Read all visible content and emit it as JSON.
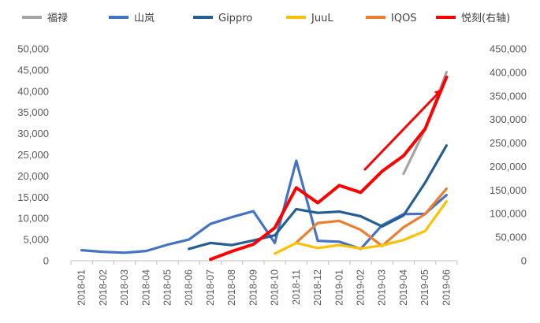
{
  "chart_data": {
    "type": "line",
    "title": "",
    "xlabel": "",
    "ylabel": "",
    "y2label": "",
    "ylim": [
      0,
      50000
    ],
    "y2lim": [
      0,
      450000
    ],
    "yticks": [
      "0",
      "5,000",
      "10,000",
      "15,000",
      "20,000",
      "25,000",
      "30,000",
      "35,000",
      "40,000",
      "45,000",
      "50,000"
    ],
    "y2ticks": [
      "0",
      "50,000",
      "100,000",
      "150,000",
      "200,000",
      "250,000",
      "300,000",
      "350,000",
      "400,000",
      "450,000"
    ],
    "categories": [
      "2018-01",
      "2018-02",
      "2018-03",
      "2018-04",
      "2018-05",
      "2018-06",
      "2018-07",
      "2018-08",
      "2018-09",
      "2018-10",
      "2018-11",
      "2018-12",
      "2019-01",
      "2019-02",
      "2019-03",
      "2019-04",
      "2019-05",
      "2019-06"
    ],
    "grid": false,
    "legend_position": "top",
    "series": [
      {
        "name": "福禄",
        "axis": "left",
        "color": "#a5a5a5",
        "values": [
          null,
          null,
          null,
          null,
          null,
          null,
          null,
          null,
          null,
          null,
          null,
          null,
          null,
          null,
          null,
          20500,
          31000,
          44500
        ]
      },
      {
        "name": "山岚",
        "axis": "left",
        "color": "#4472c4",
        "values": [
          2500,
          2100,
          1900,
          2300,
          3800,
          5000,
          8700,
          10300,
          11700,
          4200,
          23600,
          4700,
          4500,
          2800,
          8400,
          11000,
          11100,
          15500
        ]
      },
      {
        "name": "Gippro",
        "axis": "left",
        "color": "#255e91",
        "values": [
          null,
          null,
          null,
          null,
          null,
          2800,
          4200,
          3700,
          4800,
          6000,
          12200,
          11300,
          11600,
          10500,
          8100,
          10700,
          18400,
          27200
        ]
      },
      {
        "name": "JuuL",
        "axis": "left",
        "color": "#ffc000",
        "values": [
          null,
          null,
          null,
          null,
          null,
          null,
          null,
          null,
          null,
          1700,
          4200,
          3000,
          3700,
          2900,
          3600,
          4900,
          7000,
          14000
        ]
      },
      {
        "name": "IQOS",
        "axis": "left",
        "color": "#ed7d31",
        "values": [
          null,
          null,
          null,
          null,
          null,
          null,
          null,
          null,
          null,
          null,
          4300,
          8900,
          9400,
          7300,
          3500,
          7900,
          11000,
          17000
        ]
      },
      {
        "name": "悦刻(右轴)",
        "axis": "right",
        "color": "#ff0000",
        "values": [
          null,
          null,
          null,
          null,
          null,
          null,
          3000,
          20000,
          35000,
          70000,
          155000,
          123000,
          160000,
          145000,
          190000,
          223000,
          280000,
          390000
        ]
      }
    ],
    "annotations": [
      {
        "type": "arrow",
        "color": "#ff0000"
      }
    ]
  }
}
